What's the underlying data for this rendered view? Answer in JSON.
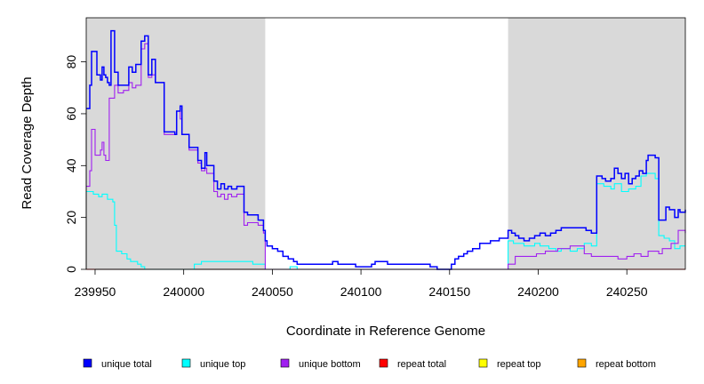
{
  "chart_data": {
    "type": "line",
    "xlabel": "Coordinate in Reference Genome",
    "ylabel": "Read Coverage Depth",
    "xlim": [
      239945,
      240283
    ],
    "ylim": [
      0,
      97
    ],
    "x_ticks": [
      239950,
      240000,
      240050,
      240100,
      240150,
      240200,
      240250
    ],
    "y_ticks": [
      0,
      20,
      40,
      60,
      80
    ],
    "shaded_regions": [
      [
        239945,
        240046
      ],
      [
        240183,
        240283
      ]
    ],
    "shade_color": "#d9d9d9",
    "series": [
      {
        "name": "unique total",
        "color": "#0000ff",
        "points": [
          [
            239945,
            62
          ],
          [
            239947,
            71
          ],
          [
            239948,
            84
          ],
          [
            239951,
            75
          ],
          [
            239953,
            73
          ],
          [
            239954,
            78
          ],
          [
            239955,
            75
          ],
          [
            239956,
            74
          ],
          [
            239957,
            72
          ],
          [
            239958,
            71
          ],
          [
            239959,
            92
          ],
          [
            239961,
            76
          ],
          [
            239963,
            71
          ],
          [
            239969,
            78
          ],
          [
            239971,
            76
          ],
          [
            239973,
            79
          ],
          [
            239976,
            88
          ],
          [
            239978,
            90
          ],
          [
            239980,
            75
          ],
          [
            239982,
            81
          ],
          [
            239984,
            72
          ],
          [
            239989,
            53
          ],
          [
            239995,
            52
          ],
          [
            239996,
            61
          ],
          [
            239998,
            63
          ],
          [
            239999,
            52
          ],
          [
            240003,
            47
          ],
          [
            240008,
            42
          ],
          [
            240010,
            39
          ],
          [
            240012,
            45
          ],
          [
            240013,
            40
          ],
          [
            240017,
            34
          ],
          [
            240019,
            31
          ],
          [
            240021,
            33
          ],
          [
            240023,
            31
          ],
          [
            240025,
            32
          ],
          [
            240027,
            31
          ],
          [
            240030,
            32
          ],
          [
            240034,
            22
          ],
          [
            240036,
            21
          ],
          [
            240039,
            21
          ],
          [
            240042,
            19
          ],
          [
            240045,
            15
          ],
          [
            240046,
            11
          ],
          [
            240047,
            9
          ],
          [
            240050,
            8
          ],
          [
            240053,
            7
          ],
          [
            240056,
            5
          ],
          [
            240059,
            4
          ],
          [
            240062,
            3
          ],
          [
            240064,
            2
          ],
          [
            240084,
            3
          ],
          [
            240087,
            2
          ],
          [
            240090,
            2
          ],
          [
            240097,
            1
          ],
          [
            240103,
            1
          ],
          [
            240106,
            2
          ],
          [
            240108,
            3
          ],
          [
            240115,
            2
          ],
          [
            240130,
            2
          ],
          [
            240139,
            1
          ],
          [
            240143,
            0
          ],
          [
            240149,
            0
          ],
          [
            240151,
            2
          ],
          [
            240153,
            4
          ],
          [
            240155,
            5
          ],
          [
            240158,
            6
          ],
          [
            240160,
            7
          ],
          [
            240163,
            8
          ],
          [
            240167,
            10
          ],
          [
            240173,
            11
          ],
          [
            240178,
            12
          ],
          [
            240183,
            15
          ],
          [
            240185,
            14
          ],
          [
            240187,
            13
          ],
          [
            240189,
            12
          ],
          [
            240192,
            11
          ],
          [
            240195,
            12
          ],
          [
            240198,
            13
          ],
          [
            240201,
            14
          ],
          [
            240204,
            13
          ],
          [
            240207,
            14
          ],
          [
            240210,
            15
          ],
          [
            240213,
            16
          ],
          [
            240227,
            15
          ],
          [
            240230,
            14
          ],
          [
            240233,
            36
          ],
          [
            240236,
            35
          ],
          [
            240238,
            34
          ],
          [
            240241,
            35
          ],
          [
            240243,
            39
          ],
          [
            240245,
            37
          ],
          [
            240247,
            35
          ],
          [
            240249,
            37
          ],
          [
            240251,
            33
          ],
          [
            240253,
            35
          ],
          [
            240255,
            36
          ],
          [
            240257,
            38
          ],
          [
            240259,
            37
          ],
          [
            240261,
            42
          ],
          [
            240262,
            44
          ],
          [
            240266,
            43
          ],
          [
            240268,
            19
          ],
          [
            240272,
            24
          ],
          [
            240274,
            23
          ],
          [
            240277,
            20
          ],
          [
            240279,
            23
          ],
          [
            240280,
            22
          ],
          [
            240283,
            23
          ]
        ]
      },
      {
        "name": "unique top",
        "color": "#00ffff",
        "points": [
          [
            239945,
            30
          ],
          [
            239949,
            29
          ],
          [
            239952,
            28
          ],
          [
            239954,
            29
          ],
          [
            239957,
            27
          ],
          [
            239960,
            26
          ],
          [
            239961,
            17
          ],
          [
            239962,
            7
          ],
          [
            239965,
            6
          ],
          [
            239968,
            4
          ],
          [
            239970,
            3
          ],
          [
            239974,
            2
          ],
          [
            239976,
            1
          ],
          [
            239978,
            0
          ],
          [
            240000,
            0
          ],
          [
            240006,
            2
          ],
          [
            240010,
            3
          ],
          [
            240039,
            2
          ],
          [
            240046,
            0
          ],
          [
            240055,
            0
          ],
          [
            240060,
            1
          ],
          [
            240064,
            0
          ],
          [
            240183,
            11
          ],
          [
            240186,
            10
          ],
          [
            240192,
            9
          ],
          [
            240198,
            10
          ],
          [
            240201,
            9
          ],
          [
            240206,
            8
          ],
          [
            240210,
            7
          ],
          [
            240213,
            8
          ],
          [
            240218,
            7
          ],
          [
            240222,
            8
          ],
          [
            240226,
            10
          ],
          [
            240230,
            9
          ],
          [
            240233,
            33
          ],
          [
            240237,
            32
          ],
          [
            240241,
            31
          ],
          [
            240243,
            33
          ],
          [
            240247,
            30
          ],
          [
            240251,
            31
          ],
          [
            240255,
            32
          ],
          [
            240258,
            36
          ],
          [
            240261,
            37
          ],
          [
            240266,
            35
          ],
          [
            240268,
            13
          ],
          [
            240271,
            12
          ],
          [
            240274,
            11
          ],
          [
            240277,
            8
          ],
          [
            240280,
            9
          ],
          [
            240283,
            9
          ]
        ]
      },
      {
        "name": "unique bottom",
        "color": "#a020f0",
        "points": [
          [
            239945,
            32
          ],
          [
            239947,
            38
          ],
          [
            239948,
            54
          ],
          [
            239950,
            44
          ],
          [
            239953,
            46
          ],
          [
            239954,
            49
          ],
          [
            239955,
            44
          ],
          [
            239956,
            42
          ],
          [
            239957,
            42
          ],
          [
            239958,
            66
          ],
          [
            239961,
            71
          ],
          [
            239963,
            68
          ],
          [
            239966,
            69
          ],
          [
            239969,
            72
          ],
          [
            239971,
            70
          ],
          [
            239973,
            71
          ],
          [
            239976,
            85
          ],
          [
            239978,
            87
          ],
          [
            239980,
            74
          ],
          [
            239982,
            75
          ],
          [
            239984,
            72
          ],
          [
            239989,
            52
          ],
          [
            239995,
            52
          ],
          [
            239996,
            61
          ],
          [
            239998,
            58
          ],
          [
            239999,
            52
          ],
          [
            240003,
            46
          ],
          [
            240008,
            41
          ],
          [
            240010,
            38
          ],
          [
            240012,
            39
          ],
          [
            240013,
            37
          ],
          [
            240017,
            30
          ],
          [
            240019,
            28
          ],
          [
            240021,
            29
          ],
          [
            240023,
            27
          ],
          [
            240025,
            29
          ],
          [
            240027,
            28
          ],
          [
            240030,
            29
          ],
          [
            240034,
            17
          ],
          [
            240036,
            18
          ],
          [
            240039,
            18
          ],
          [
            240042,
            17
          ],
          [
            240045,
            14
          ],
          [
            240046,
            0
          ],
          [
            240183,
            2
          ],
          [
            240187,
            5
          ],
          [
            240199,
            6
          ],
          [
            240204,
            7
          ],
          [
            240211,
            8
          ],
          [
            240218,
            9
          ],
          [
            240226,
            6
          ],
          [
            240230,
            5
          ],
          [
            240245,
            4
          ],
          [
            240250,
            5
          ],
          [
            240254,
            6
          ],
          [
            240258,
            5
          ],
          [
            240262,
            7
          ],
          [
            240268,
            6
          ],
          [
            240270,
            8
          ],
          [
            240275,
            10
          ],
          [
            240279,
            15
          ],
          [
            240283,
            14
          ]
        ]
      },
      {
        "name": "repeat total",
        "color": "#ff0000",
        "points": [
          [
            239945,
            0
          ],
          [
            240283,
            0
          ]
        ]
      },
      {
        "name": "repeat top",
        "color": "#ffff00",
        "points": [
          [
            239945,
            0
          ],
          [
            240283,
            0
          ]
        ]
      },
      {
        "name": "repeat bottom",
        "color": "#ffa500",
        "points": [
          [
            239945,
            0
          ],
          [
            240283,
            0
          ]
        ]
      }
    ],
    "legend_position": "bottom"
  }
}
